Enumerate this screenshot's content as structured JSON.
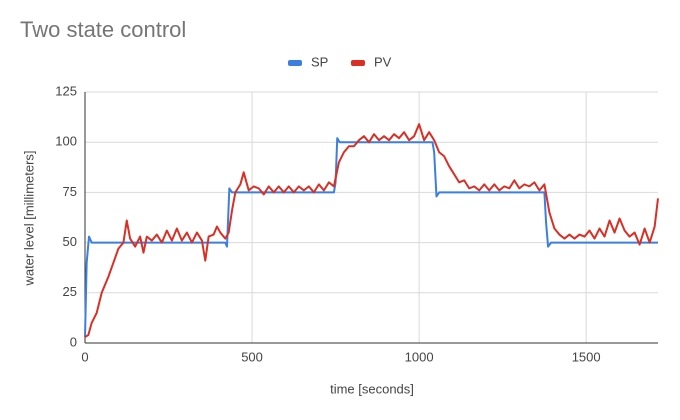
{
  "chart_data": {
    "type": "line",
    "title": "Two state control",
    "xlabel": "time [seconds]",
    "ylabel": "water level [millimeters]",
    "xlim": [
      0,
      1715
    ],
    "ylim": [
      0,
      125
    ],
    "xticks": [
      0,
      500,
      1000,
      1500
    ],
    "yticks": [
      0,
      25,
      50,
      75,
      100,
      125
    ],
    "grid": true,
    "legend": "top",
    "series": [
      {
        "name": "SP",
        "color": "#3b7fe0",
        "x": [
          0,
          5,
          12,
          20,
          420,
          425,
          432,
          440,
          745,
          750,
          755,
          762,
          1040,
          1045,
          1052,
          1060,
          1375,
          1380,
          1386,
          1395,
          1715
        ],
        "values": [
          3,
          40,
          53,
          50,
          50,
          48,
          77,
          75,
          75,
          80,
          102,
          100,
          100,
          95,
          73,
          75,
          75,
          60,
          48,
          50,
          50
        ]
      },
      {
        "name": "PV",
        "color": "#d93025",
        "x": [
          0,
          10,
          20,
          35,
          50,
          70,
          85,
          100,
          115,
          125,
          135,
          150,
          165,
          175,
          185,
          200,
          215,
          230,
          245,
          260,
          275,
          290,
          305,
          320,
          335,
          350,
          360,
          370,
          385,
          395,
          405,
          420,
          430,
          440,
          450,
          465,
          475,
          490,
          505,
          520,
          535,
          550,
          565,
          580,
          595,
          610,
          625,
          640,
          655,
          670,
          685,
          700,
          715,
          730,
          745,
          760,
          775,
          790,
          805,
          820,
          835,
          850,
          865,
          880,
          895,
          910,
          925,
          940,
          955,
          970,
          985,
          1000,
          1015,
          1030,
          1045,
          1060,
          1075,
          1090,
          1105,
          1120,
          1135,
          1150,
          1165,
          1180,
          1195,
          1210,
          1225,
          1240,
          1255,
          1270,
          1285,
          1300,
          1315,
          1330,
          1345,
          1360,
          1375,
          1390,
          1405,
          1420,
          1435,
          1450,
          1465,
          1480,
          1495,
          1510,
          1525,
          1540,
          1555,
          1570,
          1585,
          1600,
          1615,
          1630,
          1645,
          1660,
          1675,
          1690,
          1705,
          1715
        ],
        "values": [
          3,
          4,
          10,
          15,
          25,
          33,
          40,
          47,
          50,
          61,
          52,
          48,
          53,
          45,
          53,
          51,
          54,
          50,
          56,
          51,
          57,
          51,
          55,
          50,
          55,
          51,
          41,
          53,
          54,
          58,
          55,
          52,
          55,
          66,
          75,
          79,
          85,
          76,
          78,
          77,
          74,
          78,
          75,
          78,
          75,
          78,
          75,
          78,
          76,
          78,
          75,
          79,
          76,
          80,
          78,
          90,
          95,
          98,
          98,
          101,
          103,
          100,
          104,
          101,
          103,
          101,
          104,
          102,
          105,
          101,
          103,
          109,
          101,
          105,
          101,
          95,
          93,
          88,
          84,
          80,
          81,
          77,
          78,
          76,
          79,
          76,
          79,
          76,
          78,
          77,
          81,
          77,
          79,
          78,
          80,
          76,
          79,
          65,
          57,
          54,
          52,
          54,
          52,
          54,
          53,
          56,
          52,
          57,
          53,
          61,
          55,
          62,
          56,
          53,
          55,
          49,
          57,
          50,
          58,
          72
        ]
      }
    ]
  }
}
